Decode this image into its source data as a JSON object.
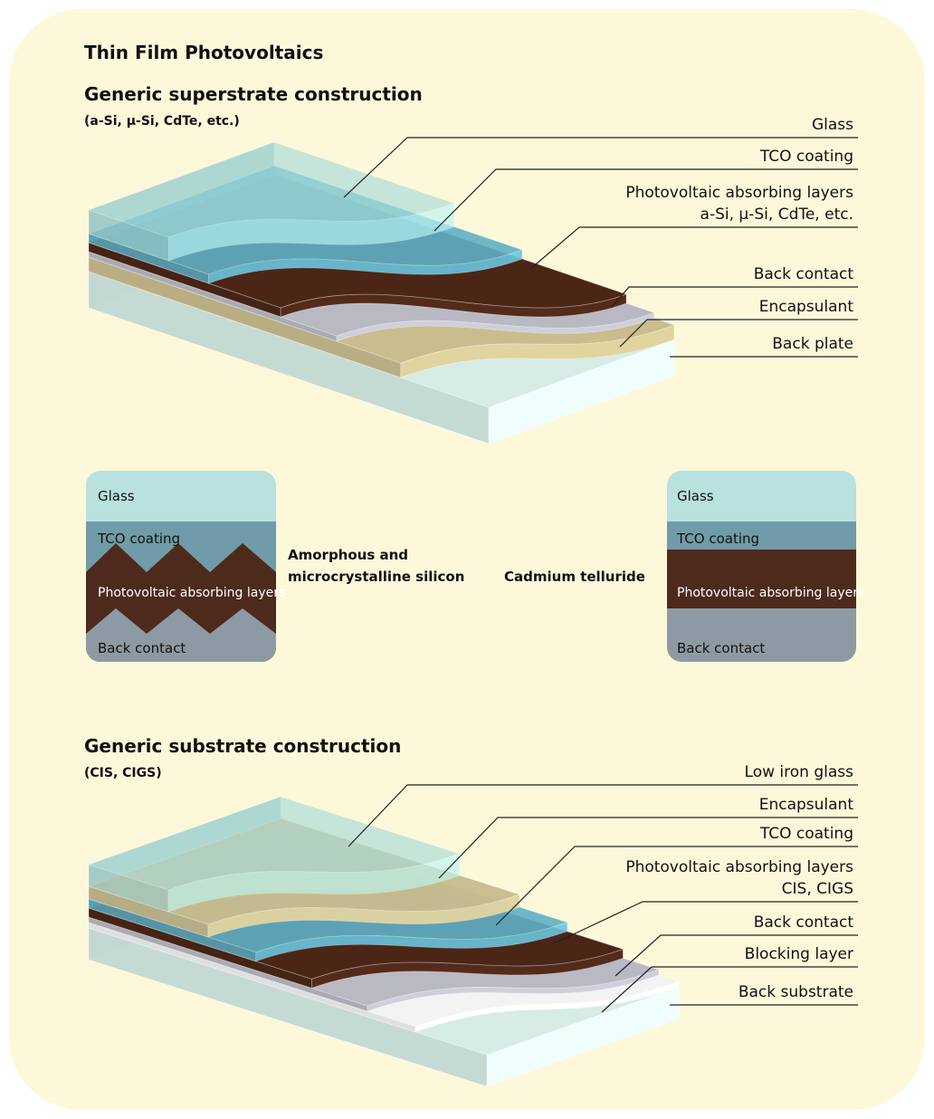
{
  "title": "Thin Film Photovoltaics",
  "superstrate": {
    "heading": "Generic superstrate construction",
    "subheading": "(a-Si, µ-Si, CdTe, etc.)",
    "labels": [
      [
        "Glass"
      ],
      [
        "TCO coating"
      ],
      [
        "Photovoltaic absorbing layers",
        "a-Si, µ-Si, CdTe, etc."
      ],
      [
        "Back contact"
      ],
      [
        "Encapsulant"
      ],
      [
        "Back plate"
      ]
    ]
  },
  "cell_types": [
    {
      "caption": [
        "Amorphous and",
        "microcrystalline silicon"
      ],
      "layers": [
        "Glass",
        "TCO coating",
        "Photovoltaic absorbing layers",
        "Back contact"
      ]
    },
    {
      "caption": [
        "Cadmium telluride"
      ],
      "layers": [
        "Glass",
        "TCO coating",
        "Photovoltaic absorbing layers",
        "Back contact"
      ]
    }
  ],
  "substrate": {
    "heading": "Generic substrate construction",
    "subheading": "(CIS, CIGS)",
    "labels": [
      [
        "Low iron glass"
      ],
      [
        "Encapsulant"
      ],
      [
        "TCO coating"
      ],
      [
        "Photovoltaic absorbing layers",
        "CIS, CIGS"
      ],
      [
        "Back contact"
      ],
      [
        "Blocking layer"
      ],
      [
        "Back substrate"
      ]
    ]
  }
}
